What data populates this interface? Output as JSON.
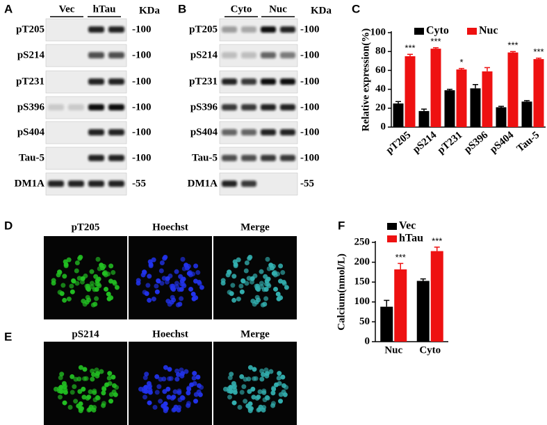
{
  "panel_labels": [
    "A",
    "B",
    "C",
    "D",
    "E",
    "F"
  ],
  "blot_a": {
    "groups": [
      "Vec",
      "hTau"
    ],
    "unit": "KDa",
    "rows": [
      {
        "label": "pT205",
        "mw": "-100"
      },
      {
        "label": "pS214",
        "mw": "-100"
      },
      {
        "label": "pT231",
        "mw": "-100"
      },
      {
        "label": "pS396",
        "mw": "-100"
      },
      {
        "label": "pS404",
        "mw": "-100"
      },
      {
        "label": "Tau-5",
        "mw": "-100"
      },
      {
        "label": "DM1A",
        "mw": "-55"
      }
    ]
  },
  "blot_b": {
    "groups": [
      "Cyto",
      "Nuc"
    ],
    "unit": "KDa",
    "rows": [
      {
        "label": "pT205",
        "mw": "-100"
      },
      {
        "label": "pS214",
        "mw": "-100"
      },
      {
        "label": "pT231",
        "mw": "-100"
      },
      {
        "label": "pS396",
        "mw": "-100"
      },
      {
        "label": "pS404",
        "mw": "-100"
      },
      {
        "label": "Tau-5",
        "mw": "-100"
      },
      {
        "label": "DM1A",
        "mw": "-55"
      }
    ]
  },
  "images_d": {
    "columns": [
      "pT205",
      "Hoechst",
      "Merge"
    ]
  },
  "images_e": {
    "columns": [
      "pS214",
      "Hoechst",
      "Merge"
    ]
  },
  "chart_data": [
    {
      "type": "bar",
      "ylabel": "Relative expression(%)",
      "categories": [
        "pT205",
        "pS214",
        "pT231",
        "pS396",
        "pS404",
        "Tau-5"
      ],
      "series": [
        {
          "name": "Cyto",
          "color": "#000000",
          "values": [
            25,
            17,
            39,
            41,
            21,
            27
          ],
          "errors": [
            2,
            2,
            1,
            4,
            1,
            1
          ]
        },
        {
          "name": "Nuc",
          "color": "#ee1111",
          "values": [
            75,
            83,
            61,
            59,
            79,
            72
          ],
          "errors": [
            2,
            1,
            1,
            4,
            1,
            1
          ]
        }
      ],
      "significance": [
        "***",
        "***",
        "*",
        null,
        "***",
        "***"
      ],
      "ylim": [
        0,
        100
      ],
      "yticks": [
        0,
        20,
        40,
        60,
        80,
        100
      ]
    },
    {
      "type": "bar",
      "ylabel": "Calcium(nmol/L)",
      "categories": [
        "Nuc",
        "Cyto"
      ],
      "series": [
        {
          "name": "Vec",
          "color": "#000000",
          "values": [
            88,
            153
          ],
          "errors": [
            16,
            5
          ]
        },
        {
          "name": "hTau",
          "color": "#ee1111",
          "values": [
            182,
            228
          ],
          "errors": [
            15,
            10
          ]
        }
      ],
      "significance": [
        "***",
        "***"
      ],
      "ylim": [
        0,
        250
      ],
      "yticks": [
        0,
        50,
        100,
        150,
        200,
        250
      ]
    }
  ]
}
